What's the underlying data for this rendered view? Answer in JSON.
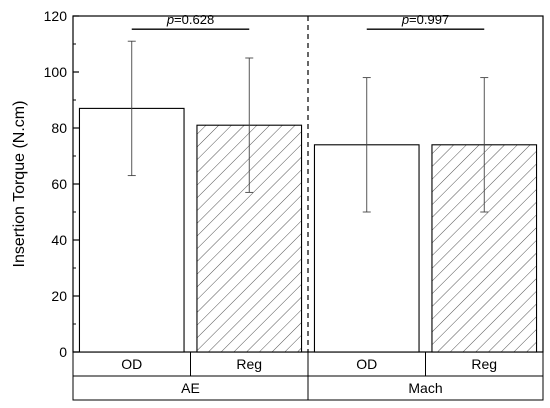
{
  "chart_data": {
    "type": "bar",
    "ylabel": "Insertion Torque (N.cm)",
    "ylim": [
      0,
      120
    ],
    "yticks": [
      0,
      20,
      40,
      60,
      80,
      100,
      120
    ],
    "grid": false,
    "bars": [
      {
        "group": "AE",
        "category": "OD",
        "value": 87,
        "error_low": 63,
        "error_high": 111,
        "pattern": "solid"
      },
      {
        "group": "AE",
        "category": "Reg",
        "value": 81,
        "error_low": 57,
        "error_high": 105,
        "pattern": "hatched"
      },
      {
        "group": "Mach",
        "category": "OD",
        "value": 74,
        "error_low": 50,
        "error_high": 98,
        "pattern": "solid"
      },
      {
        "group": "Mach",
        "category": "Reg",
        "value": 74,
        "error_low": 50,
        "error_high": 98,
        "pattern": "hatched"
      }
    ],
    "groups": [
      "AE",
      "Mach"
    ],
    "annotations": [
      {
        "group": "AE",
        "p_symbol": "p",
        "p_value": "=0.628",
        "y": 116
      },
      {
        "group": "Mach",
        "p_symbol": "p",
        "p_value": "=0.997",
        "y": 116
      }
    ]
  }
}
